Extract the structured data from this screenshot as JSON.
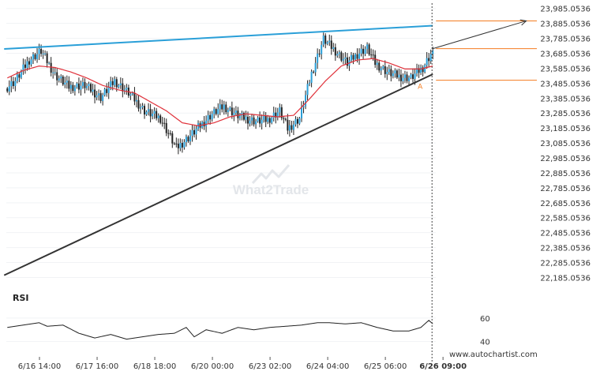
{
  "chart_data": {
    "type": "candlestick",
    "price_axis": {
      "ticks": [
        "23,985.0536",
        "23,885.0536",
        "23,785.0536",
        "23,685.0536",
        "23,585.0536",
        "23,485.0536",
        "23,385.0536",
        "23,285.0536",
        "23,185.0536",
        "23,085.0536",
        "22,985.0536",
        "22,885.0536",
        "22,785.0536",
        "22,685.0536",
        "22,585.0536",
        "22,485.0536",
        "22,385.0536",
        "22,285.0536",
        "22,185.0536"
      ],
      "range": [
        22140,
        24010
      ]
    },
    "time_axis": {
      "ticks": [
        {
          "label": "6/16 14:00",
          "bar": 0
        },
        {
          "label": "6/17 16:00",
          "bar": 1
        },
        {
          "label": "6/18 18:00",
          "bar": 2
        },
        {
          "label": "6/20 00:00",
          "bar": 3
        },
        {
          "label": "6/23 02:00",
          "bar": 4
        },
        {
          "label": "6/24 04:00",
          "bar": 5
        },
        {
          "label": "6/25 06:00",
          "bar": 6
        },
        {
          "label": "6/26 09:00",
          "bar": 7,
          "bold": true
        }
      ]
    },
    "price_anchors": [
      [
        0,
        23450
      ],
      [
        5,
        23500
      ],
      [
        12,
        23640
      ],
      [
        18,
        23700
      ],
      [
        25,
        23540
      ],
      [
        32,
        23460
      ],
      [
        40,
        23470
      ],
      [
        48,
        23390
      ],
      [
        55,
        23500
      ],
      [
        62,
        23420
      ],
      [
        70,
        23300
      ],
      [
        78,
        23250
      ],
      [
        86,
        23050
      ],
      [
        92,
        23120
      ],
      [
        98,
        23200
      ],
      [
        104,
        23280
      ],
      [
        110,
        23330
      ],
      [
        118,
        23260
      ],
      [
        126,
        23230
      ],
      [
        132,
        23240
      ],
      [
        138,
        23300
      ],
      [
        142,
        23180
      ],
      [
        148,
        23250
      ],
      [
        154,
        23550
      ],
      [
        160,
        23780
      ],
      [
        166,
        23700
      ],
      [
        172,
        23620
      ],
      [
        178,
        23690
      ],
      [
        182,
        23720
      ],
      [
        186,
        23620
      ],
      [
        192,
        23560
      ],
      [
        198,
        23530
      ],
      [
        204,
        23520
      ],
      [
        210,
        23590
      ],
      [
        214,
        23680
      ]
    ],
    "moving_average_anchors": [
      [
        0,
        23520
      ],
      [
        8,
        23570
      ],
      [
        16,
        23600
      ],
      [
        24,
        23590
      ],
      [
        32,
        23560
      ],
      [
        40,
        23520
      ],
      [
        48,
        23470
      ],
      [
        56,
        23440
      ],
      [
        64,
        23420
      ],
      [
        72,
        23360
      ],
      [
        80,
        23300
      ],
      [
        88,
        23220
      ],
      [
        96,
        23200
      ],
      [
        104,
        23220
      ],
      [
        112,
        23260
      ],
      [
        120,
        23280
      ],
      [
        128,
        23270
      ],
      [
        136,
        23260
      ],
      [
        144,
        23270
      ],
      [
        152,
        23380
      ],
      [
        160,
        23500
      ],
      [
        168,
        23600
      ],
      [
        176,
        23640
      ],
      [
        184,
        23650
      ],
      [
        192,
        23620
      ],
      [
        200,
        23580
      ],
      [
        208,
        23580
      ],
      [
        214,
        23600
      ]
    ],
    "trendlines": [
      {
        "name": "resistance",
        "color": "#2a9fd8",
        "from": [
          0,
          23714
        ],
        "to": [
          214,
          23870
        ]
      },
      {
        "name": "support",
        "color": "#333333",
        "from": [
          0,
          22200
        ],
        "to": [
          214,
          23545
        ]
      }
    ],
    "levels": [
      {
        "price": 23902,
        "color": "#f47c20"
      },
      {
        "price": 23716,
        "color": "#f47c20"
      },
      {
        "price": 23505,
        "color": "#f47c20"
      }
    ],
    "projection": {
      "from": [
        214,
        23716
      ],
      "to": [
        261,
        23902
      ]
    },
    "marker": {
      "label": "A",
      "price": 23480,
      "bar": 208
    },
    "rsi": {
      "title": "RSI",
      "ticks": [
        "60",
        "40"
      ],
      "range": [
        35,
        70
      ],
      "anchors": [
        [
          0,
          52
        ],
        [
          8,
          54
        ],
        [
          16,
          56
        ],
        [
          20,
          53
        ],
        [
          28,
          54
        ],
        [
          36,
          47
        ],
        [
          44,
          43
        ],
        [
          52,
          46
        ],
        [
          60,
          42
        ],
        [
          68,
          44
        ],
        [
          76,
          46
        ],
        [
          84,
          47
        ],
        [
          90,
          52
        ],
        [
          94,
          44
        ],
        [
          100,
          50
        ],
        [
          108,
          47
        ],
        [
          116,
          52
        ],
        [
          124,
          50
        ],
        [
          132,
          52
        ],
        [
          140,
          53
        ],
        [
          148,
          54
        ],
        [
          156,
          56
        ],
        [
          162,
          56
        ],
        [
          170,
          55
        ],
        [
          178,
          56
        ],
        [
          186,
          52
        ],
        [
          194,
          49
        ],
        [
          202,
          49
        ],
        [
          208,
          52
        ],
        [
          212,
          58
        ],
        [
          214,
          55
        ]
      ]
    }
  },
  "watermark": "What2Trade",
  "credit": "www.autochartist.com"
}
